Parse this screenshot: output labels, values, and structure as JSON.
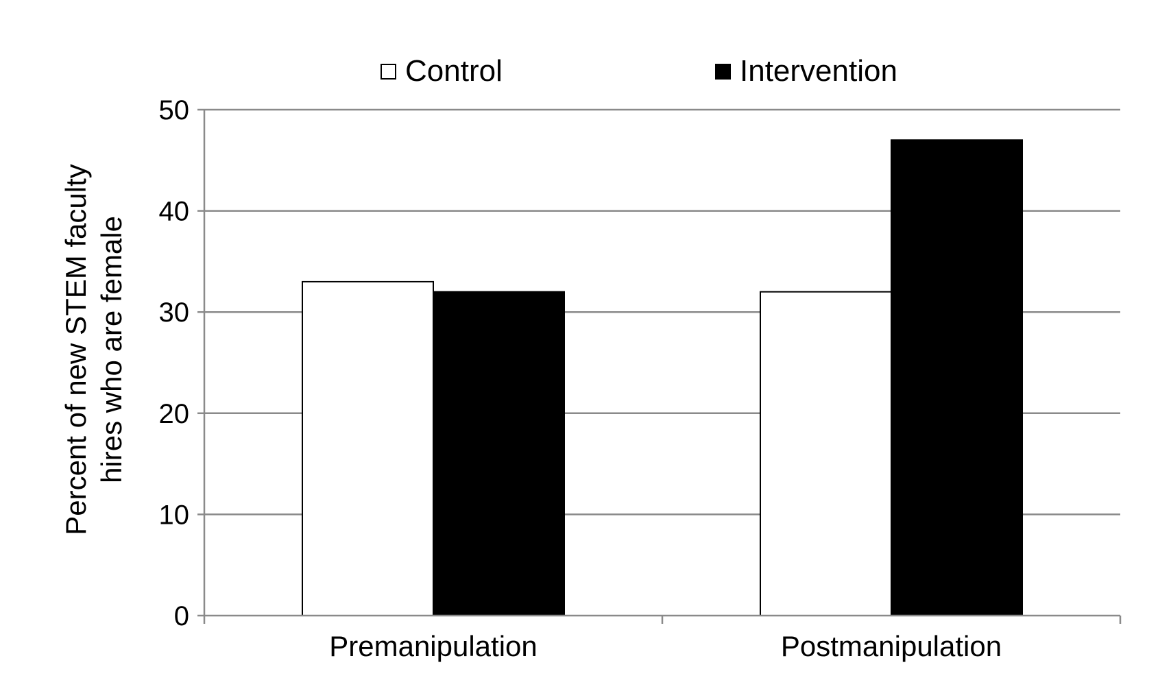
{
  "chart_data": {
    "type": "bar",
    "title": "",
    "xlabel": "",
    "ylabel_lines": [
      "Percent of new STEM faculty",
      "hires who are female"
    ],
    "ylim": [
      0,
      50
    ],
    "yticks": [
      0,
      10,
      20,
      30,
      40,
      50
    ],
    "grid": true,
    "legend_position": "top-center",
    "categories": [
      "Premanipulation",
      "Postmanipulation"
    ],
    "series": [
      {
        "name": "Control",
        "values": [
          33,
          32
        ],
        "color": "#ffffff",
        "stroke": "#000000"
      },
      {
        "name": "Intervention",
        "values": [
          32,
          47
        ],
        "color": "#000000",
        "stroke": "#000000"
      }
    ]
  }
}
